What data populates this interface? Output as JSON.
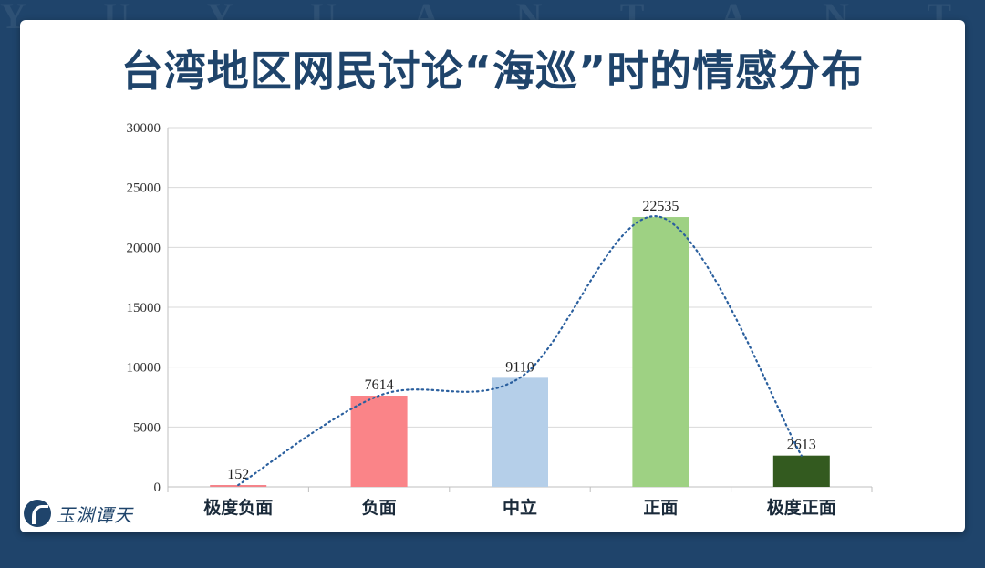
{
  "watermark": "Y U Y U A N T A N T I A N",
  "title": "台湾地区网民讨论“海巡”时的情感分布",
  "logo": {
    "text": "玉渊谭天"
  },
  "chart_data": {
    "type": "bar",
    "title": "台湾地区网民讨论“海巡”时的情感分布",
    "categories": [
      "极度负面",
      "负面",
      "中立",
      "正面",
      "极度正面"
    ],
    "values": [
      152,
      7614,
      9110,
      22535,
      2613
    ],
    "bar_colors": [
      "#f4838a",
      "#fa8488",
      "#b5cfe9",
      "#9ed183",
      "#335a1f"
    ],
    "ylim": [
      0,
      30000
    ],
    "yticks": [
      0,
      5000,
      10000,
      15000,
      20000,
      25000,
      30000
    ],
    "grid": true,
    "trendline": "dotted smooth curve",
    "trendline_color": "#2a5f9e",
    "xlabel": "",
    "ylabel": ""
  }
}
